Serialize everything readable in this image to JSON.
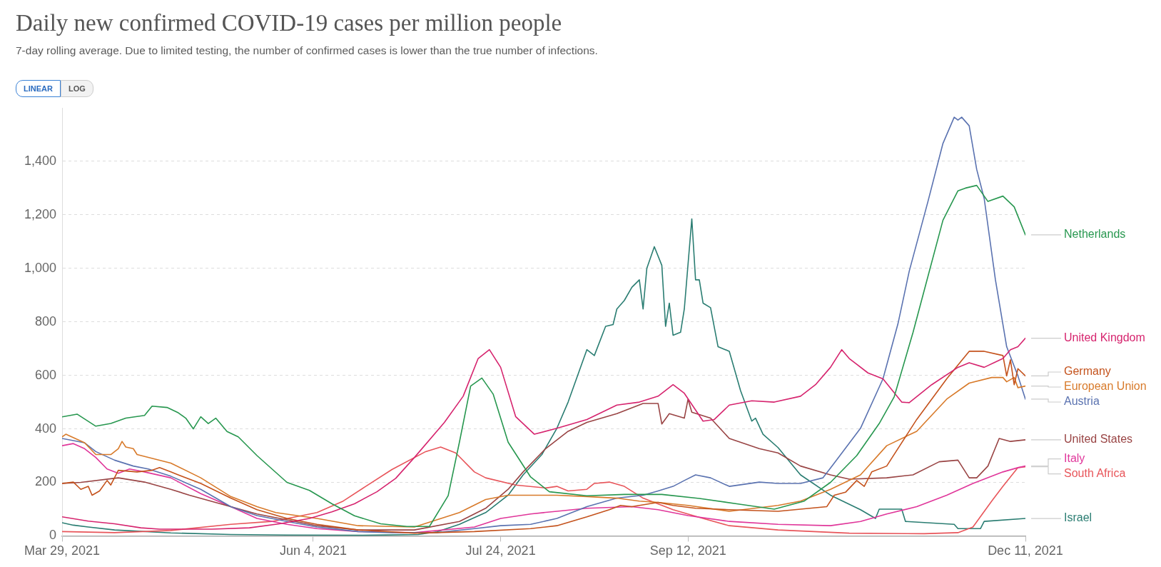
{
  "chart_data": {
    "type": "line",
    "title": "Daily new confirmed COVID-19 cases per million people",
    "subtitle": "7-day rolling average. Due to limited testing, the number of confirmed cases is lower than the true number of infections.",
    "annotations": [
      "LINEAR",
      "LOG"
    ],
    "xlim": [
      "2021-03-29",
      "2021-12-11"
    ],
    "xticks": [
      {
        "value": "2021-03-29",
        "label": "Mar 29, 2021"
      },
      {
        "value": "2021-06-04",
        "label": "Jun 4, 2021"
      },
      {
        "value": "2021-07-24",
        "label": "Jul 24, 2021"
      },
      {
        "value": "2021-09-12",
        "label": "Sep 12, 2021"
      },
      {
        "value": "2021-12-11",
        "label": "Dec 11, 2021"
      }
    ],
    "ylim": [
      0,
      1600
    ],
    "yticks": [
      0,
      200,
      400,
      600,
      800,
      {
        "value": 1000,
        "label": "1,000"
      },
      {
        "value": 1200,
        "label": "1,200"
      },
      {
        "value": 1400,
        "label": "1,400"
      }
    ],
    "grid": "y",
    "marker": "none",
    "line_style": "solid",
    "series": [
      {
        "name": "Netherlands",
        "color": "#27974f",
        "x": [
          "2021-03-29",
          "2021-04-02",
          "2021-04-07",
          "2021-04-11",
          "2021-04-15",
          "2021-04-20",
          "2021-04-22",
          "2021-04-26",
          "2021-04-29",
          "2021-05-01",
          "2021-05-03",
          "2021-05-05",
          "2021-05-07",
          "2021-05-09",
          "2021-05-12",
          "2021-05-15",
          "2021-05-20",
          "2021-05-24",
          "2021-05-28",
          "2021-06-03",
          "2021-06-09",
          "2021-06-15",
          "2021-06-22",
          "2021-06-29",
          "2021-07-05",
          "2021-07-10",
          "2021-07-13",
          "2021-07-16",
          "2021-07-19",
          "2021-07-22",
          "2021-07-26",
          "2021-08-01",
          "2021-08-06",
          "2021-08-16",
          "2021-08-26",
          "2021-09-05",
          "2021-09-15",
          "2021-09-25",
          "2021-10-05",
          "2021-10-13",
          "2021-10-20",
          "2021-10-27",
          "2021-11-02",
          "2021-11-06",
          "2021-11-11",
          "2021-11-15",
          "2021-11-19",
          "2021-11-23",
          "2021-11-25",
          "2021-11-28",
          "2021-12-01",
          "2021-12-05",
          "2021-12-08",
          "2021-12-11"
        ],
        "values": [
          445,
          455,
          410,
          420,
          440,
          450,
          485,
          480,
          460,
          440,
          400,
          445,
          420,
          440,
          390,
          370,
          300,
          250,
          200,
          170,
          120,
          75,
          45,
          35,
          35,
          150,
          350,
          560,
          590,
          530,
          350,
          220,
          165,
          150,
          155,
          155,
          140,
          120,
          100,
          130,
          200,
          300,
          420,
          520,
          760,
          970,
          1180,
          1290,
          1300,
          1310,
          1250,
          1270,
          1230,
          1125
        ]
      },
      {
        "name": "United Kingdom",
        "color": "#d6246e",
        "x": [
          "2021-03-29",
          "2021-04-05",
          "2021-04-12",
          "2021-04-19",
          "2021-04-24",
          "2021-05-08",
          "2021-05-18",
          "2021-05-26",
          "2021-06-03",
          "2021-06-09",
          "2021-06-15",
          "2021-06-21",
          "2021-06-26",
          "2021-07-01",
          "2021-07-09",
          "2021-07-14",
          "2021-07-18",
          "2021-07-21",
          "2021-07-24",
          "2021-07-28",
          "2021-08-02",
          "2021-08-08",
          "2021-08-16",
          "2021-08-24",
          "2021-08-30",
          "2021-09-04",
          "2021-09-08",
          "2021-09-11",
          "2021-09-16",
          "2021-09-19",
          "2021-09-23",
          "2021-09-29",
          "2021-10-05",
          "2021-10-12",
          "2021-10-16",
          "2021-10-20",
          "2021-10-23",
          "2021-10-25",
          "2021-10-30",
          "2021-11-03",
          "2021-11-08",
          "2021-11-10",
          "2021-11-16",
          "2021-11-23",
          "2021-11-26",
          "2021-11-30",
          "2021-12-05",
          "2021-12-07",
          "2021-12-09",
          "2021-12-11"
        ],
        "values": [
          71,
          55,
          45,
          30,
          25,
          25,
          30,
          45,
          65,
          90,
          120,
          165,
          215,
          293,
          424,
          522,
          663,
          696,
          630,
          446,
          380,
          402,
          435,
          489,
          500,
          522,
          565,
          533,
          429,
          435,
          489,
          505,
          500,
          522,
          565,
          630,
          696,
          663,
          609,
          587,
          500,
          498,
          565,
          630,
          647,
          630,
          663,
          696,
          707,
          739
        ]
      },
      {
        "name": "Germany",
        "color": "#c4521c",
        "x": [
          "2021-03-29",
          "2021-04-01",
          "2021-04-03",
          "2021-04-05",
          "2021-04-06",
          "2021-04-08",
          "2021-04-10",
          "2021-04-11",
          "2021-04-13",
          "2021-04-18",
          "2021-04-22",
          "2021-04-24",
          "2021-04-27",
          "2021-04-29",
          "2021-05-05",
          "2021-05-13",
          "2021-05-20",
          "2021-05-28",
          "2021-06-05",
          "2021-06-16",
          "2021-07-01",
          "2021-07-17",
          "2021-08-01",
          "2021-08-08",
          "2021-08-16",
          "2021-08-22",
          "2021-08-25",
          "2021-08-28",
          "2021-09-04",
          "2021-09-08",
          "2021-09-14",
          "2021-09-23",
          "2021-10-06",
          "2021-10-19",
          "2021-10-21",
          "2021-10-24",
          "2021-10-27",
          "2021-10-29",
          "2021-10-31",
          "2021-11-04",
          "2021-11-05",
          "2021-11-12",
          "2021-11-20",
          "2021-11-26",
          "2021-11-30",
          "2021-12-05",
          "2021-12-06",
          "2021-12-07",
          "2021-12-08",
          "2021-12-09",
          "2021-12-11"
        ],
        "values": [
          196,
          201,
          174,
          185,
          152,
          168,
          207,
          190,
          245,
          239,
          245,
          255,
          239,
          228,
          196,
          141,
          98,
          65,
          43,
          22,
          10,
          16,
          27,
          38,
          71,
          98,
          114,
          109,
          125,
          114,
          103,
          98,
          92,
          109,
          152,
          163,
          207,
          185,
          239,
          261,
          283,
          435,
          587,
          690,
          690,
          674,
          598,
          658,
          565,
          625,
          598
        ]
      },
      {
        "name": "European Union",
        "color": "#d87a2a",
        "x": [
          "2021-03-29",
          "2021-03-30",
          "2021-04-04",
          "2021-04-07",
          "2021-04-11",
          "2021-04-13",
          "2021-04-14",
          "2021-04-15",
          "2021-04-17",
          "2021-04-18",
          "2021-04-27",
          "2021-05-05",
          "2021-05-13",
          "2021-05-20",
          "2021-05-25",
          "2021-06-05",
          "2021-06-16",
          "2021-07-01",
          "2021-07-13",
          "2021-07-20",
          "2021-07-26",
          "2021-08-08",
          "2021-08-16",
          "2021-08-24",
          "2021-08-30",
          "2021-09-04",
          "2021-09-12",
          "2021-09-23",
          "2021-10-06",
          "2021-10-12",
          "2021-10-20",
          "2021-10-28",
          "2021-11-04",
          "2021-11-12",
          "2021-11-20",
          "2021-11-26",
          "2021-12-02",
          "2021-12-05",
          "2021-12-06",
          "2021-12-08",
          "2021-12-09",
          "2021-12-11"
        ],
        "values": [
          370,
          380,
          348,
          304,
          304,
          326,
          353,
          332,
          326,
          304,
          272,
          217,
          147,
          109,
          87,
          65,
          38,
          33,
          87,
          136,
          152,
          152,
          147,
          141,
          130,
          125,
          114,
          92,
          114,
          130,
          174,
          228,
          337,
          391,
          511,
          571,
          592,
          592,
          576,
          592,
          554,
          560
        ]
      },
      {
        "name": "Austria",
        "color": "#5a72b0",
        "x": [
          "2021-03-29",
          "2021-04-04",
          "2021-04-07",
          "2021-04-12",
          "2021-04-17",
          "2021-04-21",
          "2021-04-27",
          "2021-05-05",
          "2021-05-13",
          "2021-05-20",
          "2021-05-28",
          "2021-06-05",
          "2021-06-16",
          "2021-06-25",
          "2021-07-07",
          "2021-07-17",
          "2021-07-24",
          "2021-08-01",
          "2021-08-08",
          "2021-08-16",
          "2021-08-24",
          "2021-08-31",
          "2021-09-04",
          "2021-09-08",
          "2021-09-11",
          "2021-09-14",
          "2021-09-18",
          "2021-09-23",
          "2021-10-01",
          "2021-10-06",
          "2021-10-12",
          "2021-10-18",
          "2021-10-21",
          "2021-10-28",
          "2021-11-03",
          "2021-11-07",
          "2021-11-10",
          "2021-11-15",
          "2021-11-19",
          "2021-11-22",
          "2021-11-23",
          "2021-11-24",
          "2021-11-26",
          "2021-11-28",
          "2021-11-30",
          "2021-12-03",
          "2021-12-06",
          "2021-12-09",
          "2021-12-11"
        ],
        "values": [
          364,
          348,
          315,
          283,
          261,
          250,
          223,
          174,
          109,
          76,
          54,
          33,
          16,
          12,
          12,
          27,
          38,
          43,
          65,
          109,
          141,
          152,
          168,
          185,
          207,
          228,
          217,
          185,
          201,
          196,
          196,
          217,
          272,
          402,
          587,
          793,
          989,
          1250,
          1467,
          1565,
          1554,
          1565,
          1533,
          1370,
          1261,
          957,
          707,
          598,
          511
        ]
      },
      {
        "name": "United States",
        "color": "#994444",
        "x": [
          "2021-03-29",
          "2021-04-03",
          "2021-04-13",
          "2021-04-20",
          "2021-04-27",
          "2021-05-02",
          "2021-05-13",
          "2021-05-20",
          "2021-05-28",
          "2021-06-05",
          "2021-06-16",
          "2021-07-01",
          "2021-07-13",
          "2021-07-20",
          "2021-07-26",
          "2021-07-30",
          "2021-08-05",
          "2021-08-11",
          "2021-08-16",
          "2021-08-24",
          "2021-08-31",
          "2021-09-04",
          "2021-09-05",
          "2021-09-07",
          "2021-09-11",
          "2021-09-12",
          "2021-09-13",
          "2021-09-18",
          "2021-09-23",
          "2021-10-01",
          "2021-10-06",
          "2021-10-12",
          "2021-10-20",
          "2021-10-25",
          "2021-11-04",
          "2021-11-11",
          "2021-11-18",
          "2021-11-23",
          "2021-11-26",
          "2021-11-28",
          "2021-12-01",
          "2021-12-04",
          "2021-12-07",
          "2021-12-11"
        ],
        "values": [
          196,
          200,
          217,
          201,
          174,
          152,
          109,
          82,
          60,
          38,
          22,
          22,
          54,
          103,
          174,
          239,
          326,
          391,
          424,
          457,
          495,
          495,
          418,
          457,
          440,
          511,
          462,
          440,
          364,
          326,
          310,
          261,
          228,
          212,
          217,
          228,
          277,
          283,
          217,
          217,
          261,
          364,
          353,
          359
        ]
      },
      {
        "name": "Italy",
        "color": "#e0369a",
        "x": [
          "2021-03-29",
          "2021-04-01",
          "2021-04-04",
          "2021-04-07",
          "2021-04-10",
          "2021-04-13",
          "2021-04-16",
          "2021-04-20",
          "2021-04-27",
          "2021-05-05",
          "2021-05-13",
          "2021-05-20",
          "2021-05-28",
          "2021-06-05",
          "2021-06-16",
          "2021-07-01",
          "2021-07-17",
          "2021-07-24",
          "2021-08-01",
          "2021-08-08",
          "2021-08-16",
          "2021-08-28",
          "2021-09-04",
          "2021-09-12",
          "2021-09-23",
          "2021-10-06",
          "2021-10-20",
          "2021-10-28",
          "2021-11-04",
          "2021-11-12",
          "2021-11-20",
          "2021-11-27",
          "2021-12-05",
          "2021-12-09",
          "2021-12-11"
        ],
        "values": [
          337,
          345,
          326,
          293,
          250,
          234,
          250,
          239,
          217,
          158,
          109,
          65,
          43,
          27,
          16,
          12,
          33,
          65,
          82,
          92,
          103,
          109,
          98,
          76,
          54,
          43,
          38,
          54,
          82,
          109,
          152,
          196,
          239,
          255,
          261
        ]
      },
      {
        "name": "South Africa",
        "color": "#e8555a",
        "x": [
          "2021-03-29",
          "2021-04-12",
          "2021-04-27",
          "2021-05-13",
          "2021-05-24",
          "2021-06-01",
          "2021-06-05",
          "2021-06-12",
          "2021-06-18",
          "2021-06-25",
          "2021-07-04",
          "2021-07-08",
          "2021-07-12",
          "2021-07-17",
          "2021-07-20",
          "2021-07-28",
          "2021-08-05",
          "2021-08-08",
          "2021-08-11",
          "2021-08-16",
          "2021-08-18",
          "2021-08-22",
          "2021-08-26",
          "2021-08-31",
          "2021-09-08",
          "2021-09-16",
          "2021-09-23",
          "2021-10-06",
          "2021-10-25",
          "2021-11-14",
          "2021-11-23",
          "2021-11-27",
          "2021-12-02",
          "2021-12-05",
          "2021-12-09",
          "2021-12-11"
        ],
        "values": [
          16,
          12,
          20,
          43,
          54,
          76,
          87,
          130,
          185,
          248,
          315,
          332,
          310,
          239,
          217,
          190,
          179,
          185,
          168,
          174,
          196,
          201,
          185,
          141,
          98,
          65,
          38,
          22,
          10,
          8,
          12,
          33,
          130,
          185,
          255,
          258
        ]
      },
      {
        "name": "Israel",
        "color": "#2a7d72",
        "x": [
          "2021-03-29",
          "2021-04-01",
          "2021-04-05",
          "2021-04-12",
          "2021-04-27",
          "2021-05-13",
          "2021-05-28",
          "2021-06-17",
          "2021-07-02",
          "2021-07-07",
          "2021-07-13",
          "2021-07-20",
          "2021-07-26",
          "2021-07-30",
          "2021-08-04",
          "2021-08-08",
          "2021-08-11",
          "2021-08-16",
          "2021-08-18",
          "2021-08-21",
          "2021-08-23",
          "2021-08-24",
          "2021-08-26",
          "2021-08-28",
          "2021-08-30",
          "2021-08-31",
          "2021-09-01",
          "2021-09-03",
          "2021-09-05",
          "2021-09-06",
          "2021-09-07",
          "2021-09-08",
          "2021-09-10",
          "2021-09-11",
          "2021-09-13",
          "2021-09-14",
          "2021-09-15",
          "2021-09-16",
          "2021-09-18",
          "2021-09-20",
          "2021-09-23",
          "2021-09-26",
          "2021-09-29",
          "2021-09-30",
          "2021-10-02",
          "2021-10-06",
          "2021-10-12",
          "2021-10-20",
          "2021-10-28",
          "2021-11-01",
          "2021-11-02",
          "2021-11-08",
          "2021-11-09",
          "2021-11-22",
          "2021-11-23",
          "2021-11-29",
          "2021-11-30",
          "2021-12-11"
        ],
        "values": [
          49,
          40,
          33,
          22,
          11,
          5,
          3,
          2,
          5,
          15,
          43,
          87,
          152,
          228,
          304,
          402,
          500,
          696,
          674,
          783,
          790,
          848,
          880,
          929,
          957,
          848,
          1000,
          1081,
          1011,
          783,
          870,
          750,
          761,
          848,
          1185,
          957,
          957,
          870,
          853,
          707,
          690,
          543,
          429,
          440,
          380,
          330,
          228,
          152,
          98,
          65,
          100,
          100,
          54,
          43,
          27,
          27,
          54,
          65
        ]
      }
    ]
  }
}
